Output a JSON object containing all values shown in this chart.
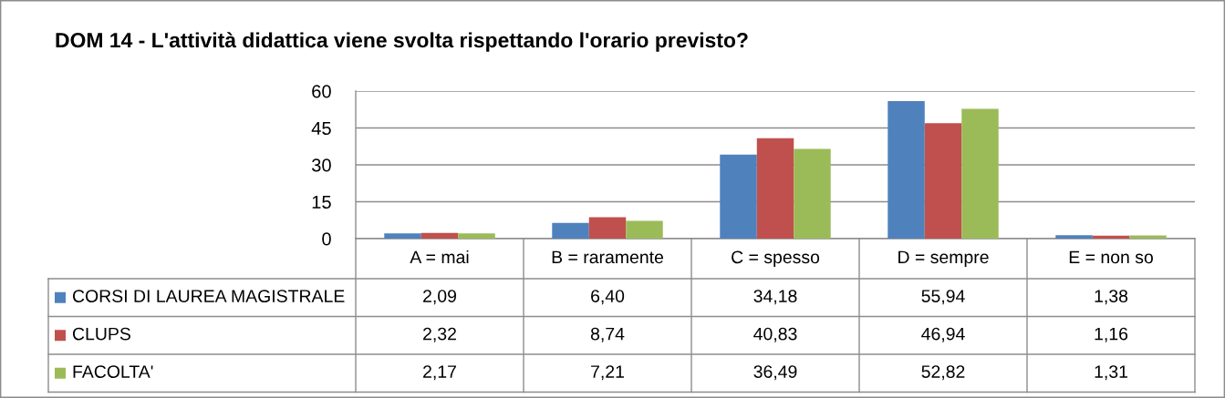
{
  "chart_data": {
    "type": "bar",
    "title": "DOM 14 - L'attività didattica viene svolta rispettando l'orario previsto?",
    "categories": [
      "A = mai",
      "B = raramente",
      "C = spesso",
      "D = sempre",
      "E = non so"
    ],
    "series": [
      {
        "name": "CORSI DI LAUREA MAGISTRALE",
        "color": "#4f81bd",
        "values": [
          2.09,
          6.4,
          34.18,
          55.94,
          1.38
        ],
        "value_labels": [
          "2,09",
          "6,40",
          "34,18",
          "55,94",
          "1,38"
        ]
      },
      {
        "name": "CLUPS",
        "color": "#c0504d",
        "values": [
          2.32,
          8.74,
          40.83,
          46.94,
          1.16
        ],
        "value_labels": [
          "2,32",
          "8,74",
          "40,83",
          "46,94",
          "1,16"
        ]
      },
      {
        "name": "FACOLTA'",
        "color": "#9bbb59",
        "values": [
          2.17,
          7.21,
          36.49,
          52.82,
          1.31
        ],
        "value_labels": [
          "2,17",
          "7,21",
          "36,49",
          "52,82",
          "1,31"
        ]
      }
    ],
    "ylim": [
      0,
      60
    ],
    "yticks": [
      0,
      15,
      30,
      45,
      60
    ],
    "grid": "y",
    "legend": "bottom"
  }
}
